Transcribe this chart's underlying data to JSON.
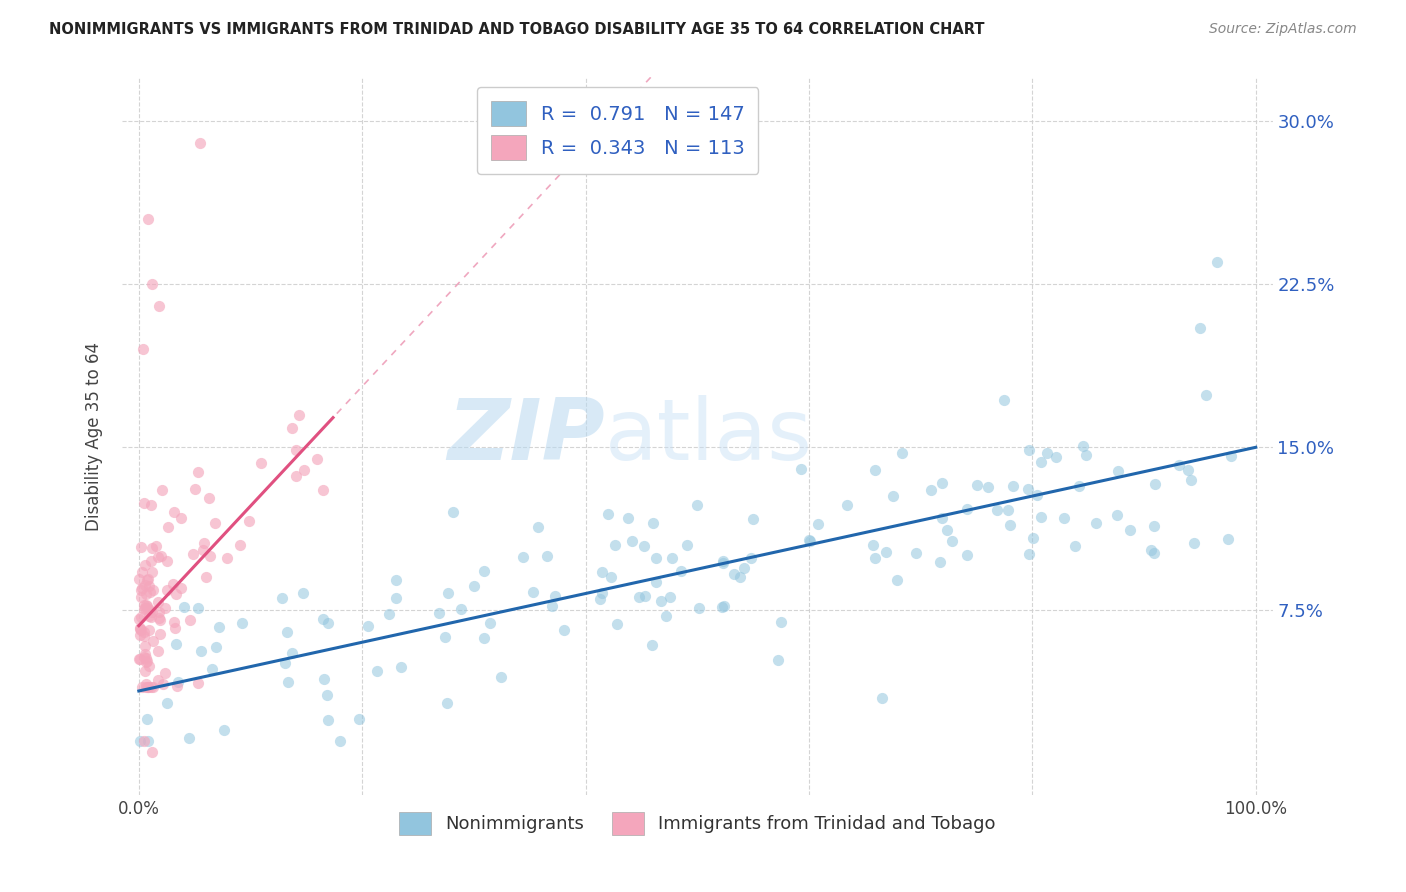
{
  "title": "NONIMMIGRANTS VS IMMIGRANTS FROM TRINIDAD AND TOBAGO DISABILITY AGE 35 TO 64 CORRELATION CHART",
  "source": "Source: ZipAtlas.com",
  "ylabel": "Disability Age 35 to 64",
  "blue_R": 0.791,
  "blue_N": 147,
  "pink_R": 0.343,
  "pink_N": 113,
  "blue_color": "#92c5de",
  "pink_color": "#f4a6bc",
  "blue_line_color": "#2166ac",
  "pink_line_color": "#e05080",
  "legend_R_color": "#3060c0",
  "watermark_zip": "ZIP",
  "watermark_atlas": "atlas",
  "background_color": "#ffffff",
  "grid_color": "#d0d0d0",
  "xlim": [
    0.0,
    1.0
  ],
  "ylim": [
    -0.01,
    0.32
  ],
  "blue_slope": 0.112,
  "blue_intercept": 0.038,
  "pink_slope": 0.55,
  "pink_intercept": 0.068,
  "legend_label_blue": "Nonimmigrants",
  "legend_label_pink": "Immigrants from Trinidad and Tobago"
}
